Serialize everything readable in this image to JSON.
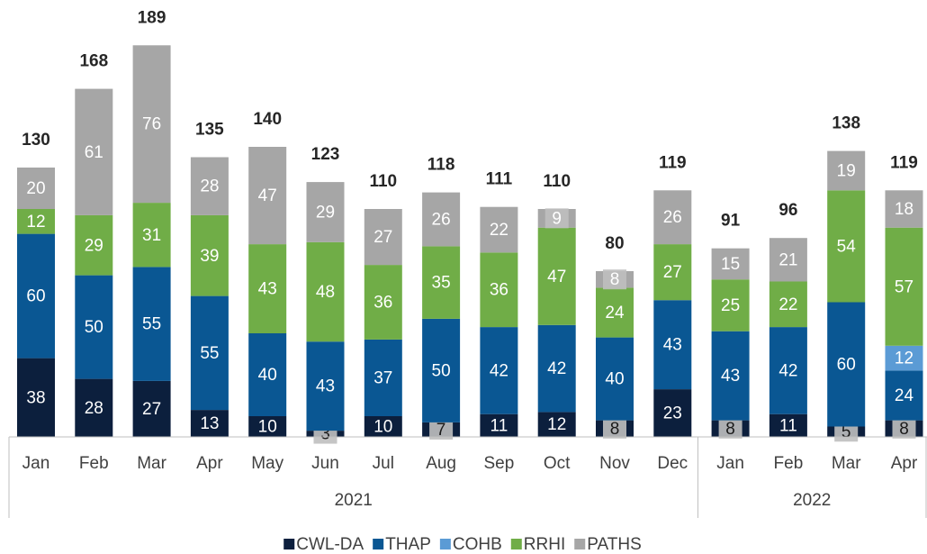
{
  "chart_data": {
    "type": "stacked-bar",
    "groups": [
      {
        "name": "2021",
        "categories": [
          "Jan",
          "Feb",
          "Mar",
          "Apr",
          "May",
          "Jun",
          "Jul",
          "Aug",
          "Sep",
          "Oct",
          "Nov",
          "Dec"
        ]
      },
      {
        "name": "2022",
        "categories": [
          "Jan",
          "Feb",
          "Mar",
          "Apr"
        ]
      }
    ],
    "series": [
      {
        "name": "CWL-DA",
        "color": "#0c1f3d",
        "values": [
          38,
          28,
          27,
          13,
          10,
          3,
          10,
          7,
          11,
          12,
          8,
          23,
          8,
          11,
          5,
          8
        ]
      },
      {
        "name": "THAP",
        "color": "#0a5793",
        "values": [
          60,
          50,
          55,
          55,
          40,
          43,
          37,
          50,
          42,
          42,
          40,
          43,
          43,
          42,
          60,
          24
        ]
      },
      {
        "name": "COHB",
        "color": "#5b9bd5",
        "values": [
          null,
          null,
          null,
          null,
          null,
          null,
          null,
          null,
          null,
          null,
          null,
          null,
          null,
          null,
          null,
          12
        ]
      },
      {
        "name": "RRHI",
        "color": "#70ad47",
        "values": [
          12,
          29,
          31,
          39,
          43,
          48,
          36,
          35,
          36,
          47,
          24,
          27,
          25,
          22,
          54,
          57
        ]
      },
      {
        "name": "PATHS",
        "color": "#a6a6a6",
        "values": [
          20,
          61,
          76,
          28,
          47,
          29,
          27,
          26,
          22,
          9,
          8,
          26,
          15,
          21,
          19,
          18
        ]
      }
    ],
    "totals": [
      130,
      168,
      189,
      135,
      140,
      123,
      110,
      118,
      111,
      110,
      80,
      119,
      91,
      96,
      138,
      119
    ],
    "legend": "bottom"
  }
}
